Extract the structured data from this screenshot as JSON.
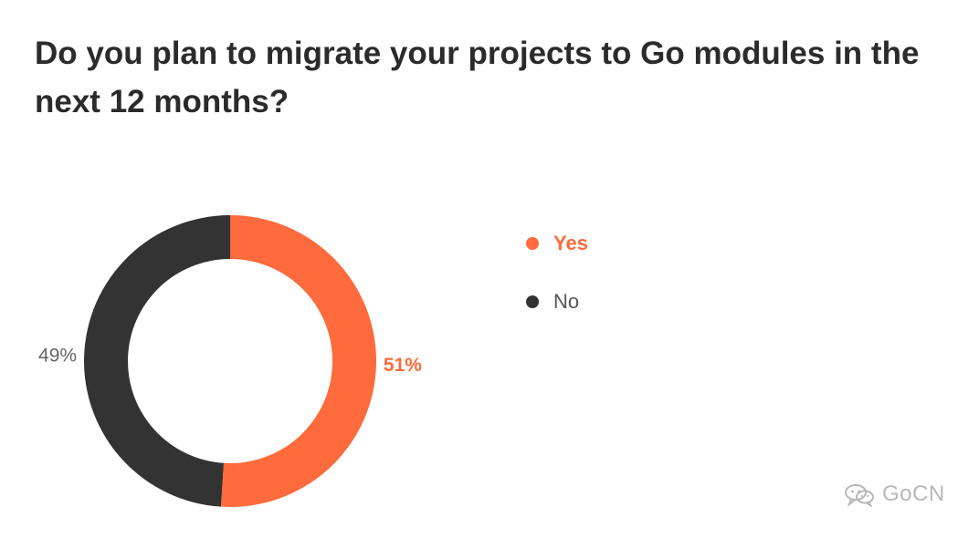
{
  "title": "Do you plan to migrate your projects to Go modules in the next 12 months?",
  "colors": {
    "yes": "#ff6b3d",
    "no": "#333333",
    "text": "#2b2b2b",
    "muted": "#666666",
    "watermark": "#b8b8b8"
  },
  "chart_data": {
    "type": "pie",
    "title": "Do you plan to migrate your projects to Go modules in the next 12 months?",
    "donut": true,
    "slices": [
      {
        "label": "Yes",
        "value": 51,
        "display": "51%",
        "color": "#ff6b3d"
      },
      {
        "label": "No",
        "value": 49,
        "display": "49%",
        "color": "#333333"
      }
    ],
    "legend_placement": "right"
  },
  "legend": [
    {
      "label": "Yes",
      "color": "#ff6b3d",
      "active": true
    },
    {
      "label": "No",
      "color": "#333333",
      "active": false
    }
  ],
  "watermark": {
    "icon": "wechat-icon",
    "text": "GoCN"
  }
}
